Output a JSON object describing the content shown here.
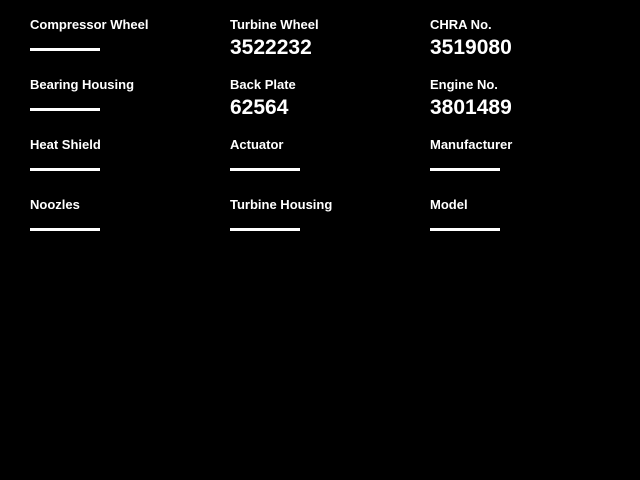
{
  "colors": {
    "background": "#000000",
    "text": "#ffffff"
  },
  "spec_grid": {
    "fields": [
      {
        "label": "Compressor Wheel",
        "value": ""
      },
      {
        "label": "Turbine Wheel",
        "value": "3522232"
      },
      {
        "label": "CHRA No.",
        "value": "3519080"
      },
      {
        "label": "Bearing Housing",
        "value": ""
      },
      {
        "label": "Back Plate",
        "value": "62564"
      },
      {
        "label": "Engine No.",
        "value": "3801489"
      },
      {
        "label": "Heat Shield",
        "value": ""
      },
      {
        "label": "Actuator",
        "value": ""
      },
      {
        "label": "Manufacturer",
        "value": ""
      },
      {
        "label": "Noozles",
        "value": ""
      },
      {
        "label": "Turbine Housing",
        "value": ""
      },
      {
        "label": "Model",
        "value": ""
      }
    ]
  }
}
